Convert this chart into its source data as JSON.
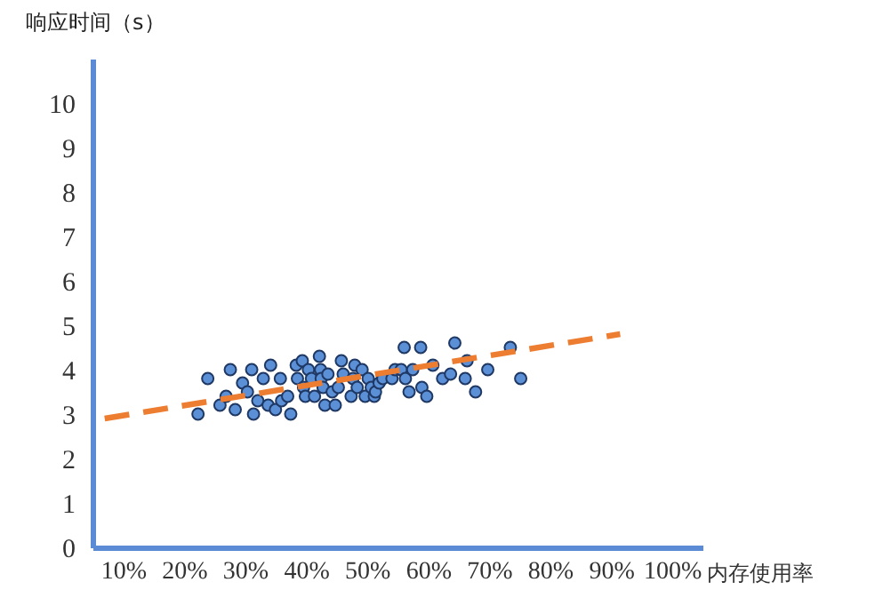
{
  "chart_data": {
    "type": "scatter",
    "ylabel": "响应时间（s）",
    "xlabel": "内存使用率",
    "xlim": [
      5,
      105
    ],
    "xticks": [
      {
        "value": 10,
        "label": "10%"
      },
      {
        "value": 20,
        "label": "20%"
      },
      {
        "value": 30,
        "label": "30%"
      },
      {
        "value": 40,
        "label": "40%"
      },
      {
        "value": 50,
        "label": "50%"
      },
      {
        "value": 60,
        "label": "60%"
      },
      {
        "value": 70,
        "label": "70%"
      },
      {
        "value": 80,
        "label": "80%"
      },
      {
        "value": 90,
        "label": "90%"
      },
      {
        "value": 100,
        "label": "100%"
      }
    ],
    "ylim": [
      0,
      11
    ],
    "yticks": [
      0,
      1,
      2,
      3,
      4,
      5,
      6,
      7,
      8,
      9,
      10
    ],
    "series": [
      {
        "type": "scatter",
        "marker": "circle",
        "color": "#5b8fd6",
        "x": [
          22.3,
          23.9,
          25.9,
          26.9,
          27.6,
          28.4,
          29.6,
          30.4,
          31.1,
          31.4,
          32.1,
          33.0,
          33.8,
          34.2,
          35.0,
          35.8,
          36.0,
          37.0,
          37.5,
          38.4,
          38.6,
          39.4,
          39.6,
          39.9,
          40.4,
          40.9,
          41.4,
          42.2,
          42.4,
          42.5,
          42.8,
          43.1,
          43.6,
          44.3,
          44.8,
          45.3,
          45.8,
          46.1,
          47.4,
          47.7,
          48.0,
          48.4,
          49.2,
          49.7,
          50.2,
          50.7,
          51.2,
          51.4,
          52.0,
          52.6,
          54.1,
          54.6,
          55.6,
          56.1,
          56.3,
          56.9,
          57.5,
          58.8,
          59.0,
          59.8,
          60.8,
          62.4,
          63.7,
          64.4,
          66.1,
          66.4,
          67.8,
          69.8,
          73.5,
          75.2
        ],
        "values": [
          3.0,
          3.8,
          3.2,
          3.4,
          4.0,
          3.1,
          3.7,
          3.5,
          4.0,
          3.0,
          3.3,
          3.8,
          3.2,
          4.1,
          3.1,
          3.8,
          3.3,
          3.4,
          3.0,
          4.1,
          3.8,
          4.2,
          3.6,
          3.4,
          4.0,
          3.8,
          3.4,
          4.3,
          4.0,
          3.8,
          3.6,
          3.2,
          3.9,
          3.5,
          3.2,
          3.6,
          4.2,
          3.9,
          3.4,
          3.8,
          4.1,
          3.6,
          4.0,
          3.4,
          3.8,
          3.6,
          3.4,
          3.5,
          3.7,
          3.8,
          3.8,
          4.0,
          4.0,
          4.5,
          3.8,
          3.5,
          4.0,
          4.5,
          3.6,
          3.4,
          4.1,
          3.8,
          3.9,
          4.6,
          3.8,
          4.2,
          3.5,
          4.0,
          4.5,
          3.8
        ]
      },
      {
        "type": "line",
        "line_style": "dashed",
        "color": "#ed7d31",
        "x": [
          7,
          91.5
        ],
        "values": [
          2.9,
          4.8
        ]
      }
    ]
  }
}
